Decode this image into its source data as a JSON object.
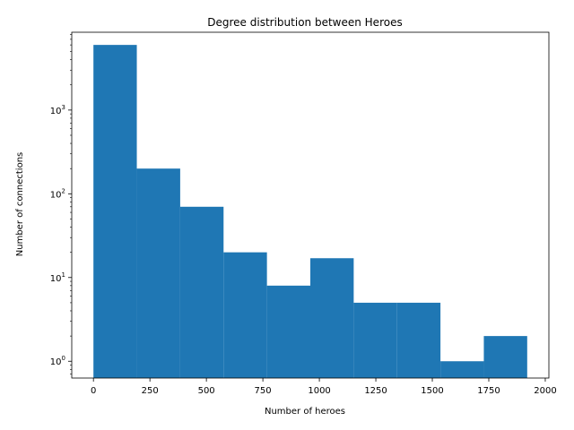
{
  "chart_data": {
    "type": "bar",
    "title": "Degree distribution between Heroes",
    "xlabel": "Number of heroes",
    "ylabel": "Number of connections",
    "yscale": "log",
    "grid": false,
    "legend": "none",
    "bar_color": "#1f77b4",
    "bin_edges": [
      0,
      192,
      384,
      576,
      768,
      960,
      1152,
      1344,
      1536,
      1728,
      1920
    ],
    "values": [
      6000,
      200,
      70,
      20,
      8,
      17,
      5,
      5,
      1,
      2
    ],
    "xlim": [
      -96,
      2016
    ],
    "ylim": [
      0.63,
      8500
    ],
    "x_ticks": [
      {
        "value": 0,
        "label": "0"
      },
      {
        "value": 250,
        "label": "250"
      },
      {
        "value": 500,
        "label": "500"
      },
      {
        "value": 750,
        "label": "750"
      },
      {
        "value": 1000,
        "label": "1000"
      },
      {
        "value": 1250,
        "label": "1250"
      },
      {
        "value": 1500,
        "label": "1500"
      },
      {
        "value": 1750,
        "label": "1750"
      },
      {
        "value": 2000,
        "label": "2000"
      }
    ],
    "y_ticks": [
      {
        "value": 1,
        "base": "10",
        "exp": "0"
      },
      {
        "value": 10,
        "base": "10",
        "exp": "1"
      },
      {
        "value": 100,
        "base": "10",
        "exp": "2"
      },
      {
        "value": 1000,
        "base": "10",
        "exp": "3"
      }
    ]
  }
}
